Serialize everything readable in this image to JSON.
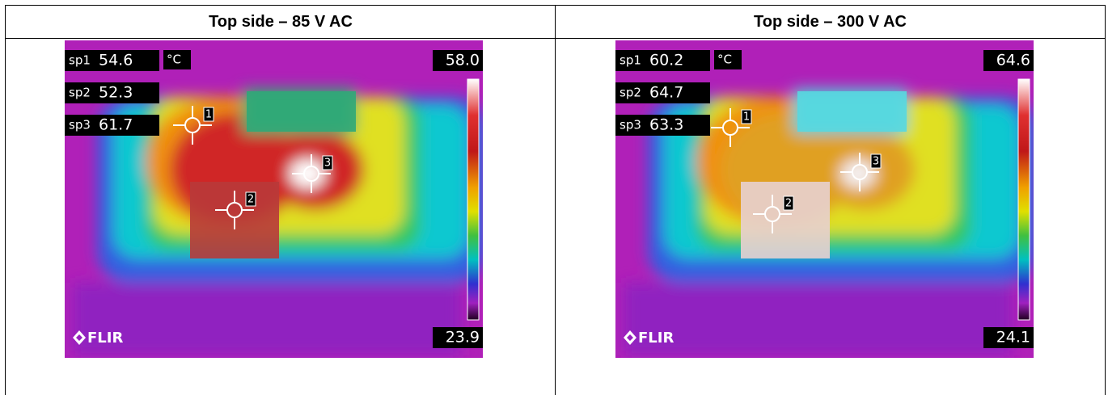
{
  "panels": [
    {
      "title": "Top side – 85 V AC",
      "spots": [
        {
          "label": "sp1",
          "value": "54.6"
        },
        {
          "label": "sp2",
          "value": "52.3"
        },
        {
          "label": "sp3",
          "value": "61.7"
        }
      ],
      "unit": "°C",
      "max": "58.0",
      "min": "23.9",
      "markers": [
        "1",
        "2",
        "3"
      ],
      "logo": "FLIR"
    },
    {
      "title": "Top side – 300 V AC",
      "spots": [
        {
          "label": "sp1",
          "value": "60.2"
        },
        {
          "label": "sp2",
          "value": "64.7"
        },
        {
          "label": "sp3",
          "value": "63.3"
        }
      ],
      "unit": "°C",
      "max": "64.6",
      "min": "24.1",
      "markers": [
        "1",
        "2",
        "3"
      ],
      "logo": "FLIR"
    }
  ]
}
